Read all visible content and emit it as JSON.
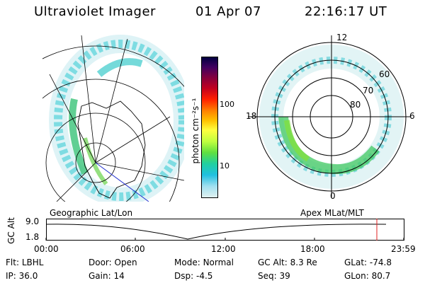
{
  "header": {
    "instrument": "Ultraviolet Imager",
    "date": "01 Apr 07",
    "time": "22:16:17 UT"
  },
  "left_panel": {
    "label": "Geographic Lat/Lon"
  },
  "colorbar": {
    "label": "photon cm⁻²s⁻¹",
    "ticks": [
      "100",
      "10"
    ],
    "colors": [
      "#000040",
      "#400060",
      "#800040",
      "#c00020",
      "#ff2000",
      "#ff8000",
      "#ffc000",
      "#ffff40",
      "#c0ff40",
      "#60e040",
      "#20d0a0",
      "#20c0e0",
      "#a0e0f0",
      "#e0f0f0"
    ]
  },
  "right_panel": {
    "label": "Apex MLat/MLT",
    "mlt_labels": {
      "top": "12",
      "left": "18",
      "right": "6",
      "bottom": "0"
    },
    "mlat_labels": [
      "60",
      "70",
      "80"
    ]
  },
  "timeline": {
    "axis_label": "GC Alt",
    "ymax": "9.0",
    "ymin": "1.8",
    "ticks": [
      "00:00",
      "06:00",
      "12:00",
      "18:00",
      "23:59"
    ]
  },
  "status": {
    "row1": [
      {
        "key": "Flt:",
        "val": "LBHL"
      },
      {
        "key": "Door:",
        "val": "Open"
      },
      {
        "key": "Mode:",
        "val": "Normal"
      },
      {
        "key": "GC Alt:",
        "val": "8.3 Re"
      },
      {
        "key": "GLat:",
        "val": "-74.8"
      }
    ],
    "row2": [
      {
        "key": "IP:",
        "val": "36.0"
      },
      {
        "key": "Gain:",
        "val": "14"
      },
      {
        "key": "Dsp:",
        "val": "-4.5"
      },
      {
        "key": "Seq:",
        "val": "39"
      },
      {
        "key": "GLon:",
        "val": "80.7"
      }
    ]
  }
}
